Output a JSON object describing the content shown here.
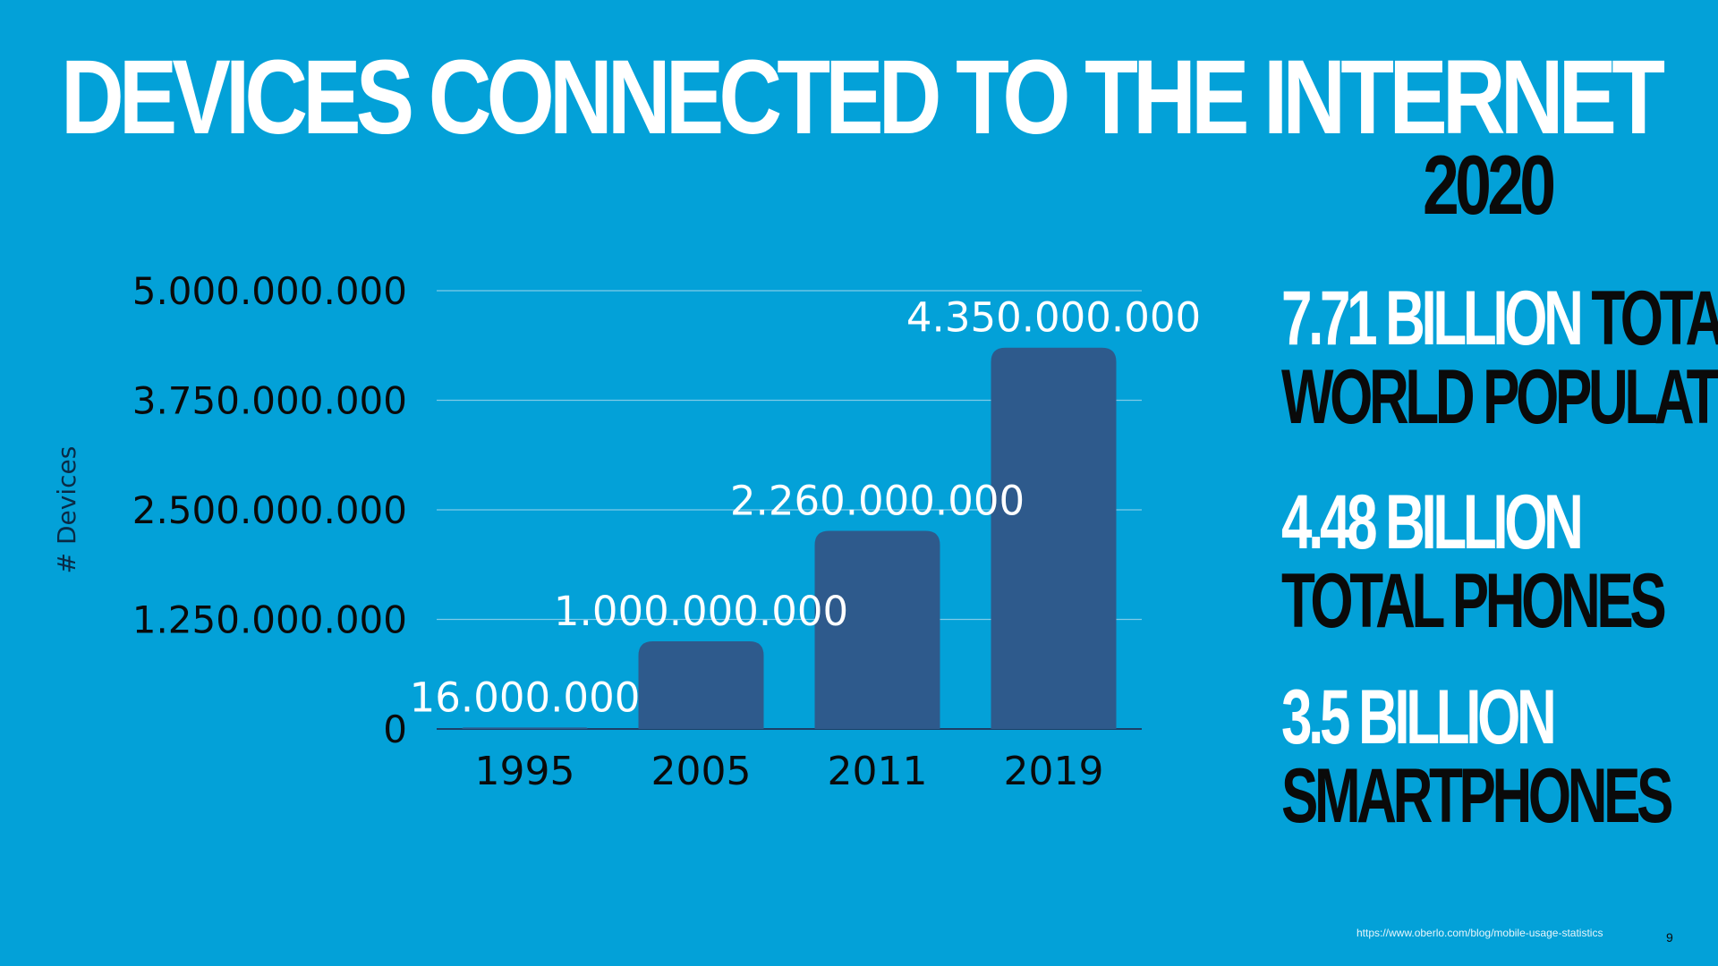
{
  "slide": {
    "title": "DEVICES CONNECTED TO THE INTERNET",
    "year": "2020",
    "stats": [
      {
        "line1_highlight": "7.71 BILLION",
        "line1_rest": " TOTAL",
        "line2": "WORLD POPULATION"
      },
      {
        "line1_highlight": "4.48 BILLION",
        "line1_rest": "",
        "line2": "TOTAL PHONES"
      },
      {
        "line1_highlight": "3.5 BILLION",
        "line1_rest": "",
        "line2": "SMARTPHONES"
      }
    ],
    "source": "https://www.oberlo.com/blog/mobile-usage-statistics",
    "page_number": "9"
  },
  "colors": {
    "background": "#03a1d8",
    "bar": "#2e5a8c",
    "gridline": "#7fcbe8",
    "highlight_text": "#ffffff",
    "dark_text": "#0a0a0a"
  },
  "chart_data": {
    "type": "bar",
    "categories": [
      "1995",
      "2005",
      "2011",
      "2019"
    ],
    "values": [
      16000000,
      1000000000,
      2260000000,
      4350000000
    ],
    "data_labels": [
      "16.000.000",
      "1.000.000.000",
      "2.260.000.000",
      "4.350.000.000"
    ],
    "title": "",
    "xlabel": "",
    "ylabel": "# Devices",
    "ylim": [
      0,
      5000000000
    ],
    "yticks": [
      0,
      1250000000,
      2500000000,
      3750000000,
      5000000000
    ],
    "ytick_labels": [
      "0",
      "1.250.000.000",
      "2.500.000.000",
      "3.750.000.000",
      "5.000.000.000"
    ],
    "grid": true
  }
}
